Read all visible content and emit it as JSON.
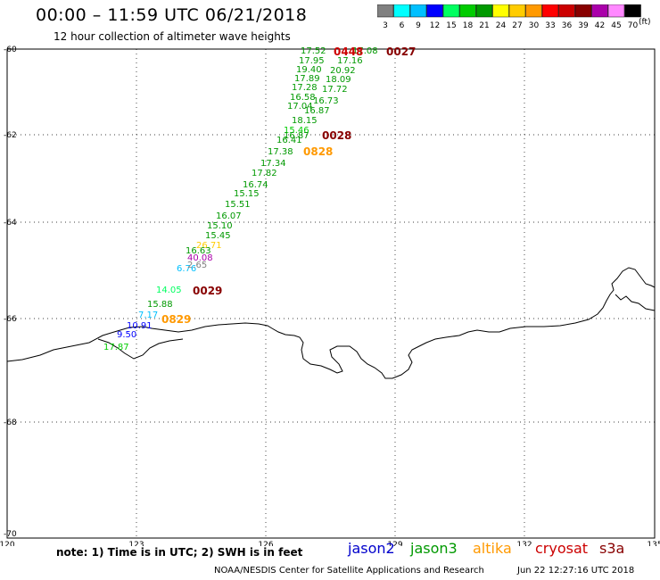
{
  "header": {
    "title": "00:00 – 11:59 UTC 06/21/2018",
    "subtitle": "12 hour collection of altimeter wave heights"
  },
  "legend": {
    "unit": "(ft)",
    "bins": [
      {
        "label": "3",
        "color": "#808080"
      },
      {
        "label": "6",
        "color": "#00ffff"
      },
      {
        "label": "9",
        "color": "#00c0ff"
      },
      {
        "label": "12",
        "color": "#0000ff"
      },
      {
        "label": "15",
        "color": "#00ff60"
      },
      {
        "label": "18",
        "color": "#00cc00"
      },
      {
        "label": "21",
        "color": "#009900"
      },
      {
        "label": "24",
        "color": "#ffff00"
      },
      {
        "label": "27",
        "color": "#ffcc00"
      },
      {
        "label": "30",
        "color": "#ff9900"
      },
      {
        "label": "33",
        "color": "#ff0000"
      },
      {
        "label": "36",
        "color": "#cc0000"
      },
      {
        "label": "39",
        "color": "#880000"
      },
      {
        "label": "42",
        "color": "#aa00aa"
      },
      {
        "label": "45",
        "color": "#ff88ff"
      },
      {
        "label": "70",
        "color": "#000000"
      }
    ]
  },
  "map": {
    "lat_labels": [
      "-60",
      "-62",
      "-64",
      "-66",
      "-68",
      "-70"
    ],
    "lon_labels": [
      "120",
      "123",
      "126",
      "129",
      "132",
      "135"
    ],
    "track_labels": [
      {
        "text": "0448",
        "color": "#cc0000",
        "tag": true
      },
      {
        "text": "0027",
        "color": "#880000",
        "tag": true
      },
      {
        "text": "0028",
        "color": "#880000",
        "tag": true
      },
      {
        "text": "0828",
        "color": "#ff9900",
        "tag": true
      },
      {
        "text": "0029",
        "color": "#880000",
        "tag": true
      },
      {
        "text": "0829",
        "color": "#ff9900",
        "tag": true
      }
    ],
    "observations": [
      {
        "text": "17.52",
        "color": "#009900"
      },
      {
        "text": "17.08",
        "color": "#009900"
      },
      {
        "text": "17.95",
        "color": "#009900"
      },
      {
        "text": "17.16",
        "color": "#009900"
      },
      {
        "text": "19.40",
        "color": "#009900"
      },
      {
        "text": "20.92",
        "color": "#009900"
      },
      {
        "text": "17.89",
        "color": "#009900"
      },
      {
        "text": "18.09",
        "color": "#009900"
      },
      {
        "text": "17.28",
        "color": "#009900"
      },
      {
        "text": "17.72",
        "color": "#009900"
      },
      {
        "text": "16.58",
        "color": "#009900"
      },
      {
        "text": "16.73",
        "color": "#009900"
      },
      {
        "text": "17.04",
        "color": "#009900"
      },
      {
        "text": "16.87",
        "color": "#009900"
      },
      {
        "text": "18.15",
        "color": "#009900"
      },
      {
        "text": "15.46",
        "color": "#00cc00"
      },
      {
        "text": "16.41",
        "color": "#009900"
      },
      {
        "text": "16.87",
        "color": "#009900"
      },
      {
        "text": "17.38",
        "color": "#009900"
      },
      {
        "text": "17.34",
        "color": "#009900"
      },
      {
        "text": "17.82",
        "color": "#009900"
      },
      {
        "text": "16.74",
        "color": "#009900"
      },
      {
        "text": "15.15",
        "color": "#009900"
      },
      {
        "text": "15.51",
        "color": "#009900"
      },
      {
        "text": "16.07",
        "color": "#009900"
      },
      {
        "text": "15.10",
        "color": "#009900"
      },
      {
        "text": "15.45",
        "color": "#009900"
      },
      {
        "text": "26.71",
        "color": "#ffcc00"
      },
      {
        "text": "16.63",
        "color": "#009900"
      },
      {
        "text": "40.08",
        "color": "#aa00aa"
      },
      {
        "text": "6.76",
        "color": "#00c0ff"
      },
      {
        "text": "2.65",
        "color": "#808080"
      },
      {
        "text": "14.05",
        "color": "#00ff60"
      },
      {
        "text": "15.88",
        "color": "#009900"
      },
      {
        "text": "7.17",
        "color": "#00c0ff"
      },
      {
        "text": "10.91",
        "color": "#0000ff"
      },
      {
        "text": "9.50",
        "color": "#0000ff"
      },
      {
        "text": "17.87",
        "color": "#00cc00"
      }
    ]
  },
  "footer": {
    "note": "note: 1) Time is in UTC; 2) SWH is in feet",
    "satellites": [
      {
        "name": "jason2",
        "color": "#0000cc"
      },
      {
        "name": "jason3",
        "color": "#009900"
      },
      {
        "name": "altika",
        "color": "#ff9900"
      },
      {
        "name": "cryosat",
        "color": "#cc0000"
      },
      {
        "name": "s3a",
        "color": "#880000"
      }
    ],
    "credit": "NOAA/NESDIS Center for Satellite Applications and Research",
    "timestamp": "Jun 22 12:27:16 UTC 2018"
  }
}
